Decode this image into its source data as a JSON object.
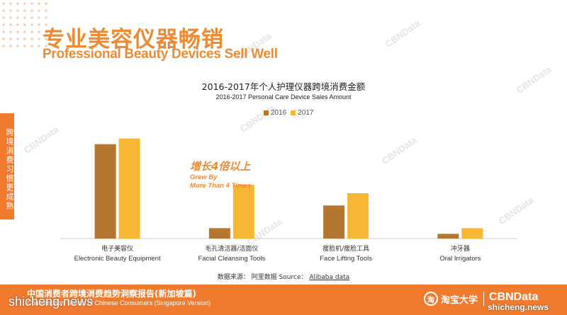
{
  "header": {
    "title_cn": "专业美容仪器畅销",
    "title_en": "Professional Beauty Devices Sell Well"
  },
  "side_tab": {
    "text": "跨境消费习惯更成熟"
  },
  "chart_data": {
    "type": "bar",
    "title": "2016-2017年个人护理仪器跨境消费金额",
    "subtitle": "2016-2017 Personal Care Device Sales Amount",
    "categories": [
      {
        "cn": "电子美容仪",
        "en": "Electronic Beauty Equipment"
      },
      {
        "cn": "毛孔清洁器/洁面仪",
        "en": "Facial Cleansing Tools"
      },
      {
        "cn": "瘦脸机/瘦脸工具",
        "en": "Face Lifting Tools"
      },
      {
        "cn": "冲牙器",
        "en": "Oral Irrigators"
      }
    ],
    "series": [
      {
        "name": "2016",
        "color": "#b5762f",
        "values": [
          100,
          11,
          35,
          5
        ]
      },
      {
        "name": "2017",
        "color": "#f7b634",
        "values": [
          106,
          57,
          48,
          11
        ]
      }
    ],
    "ylim": [
      0,
      120
    ],
    "xlabel": "",
    "ylabel": "",
    "grid": false,
    "legend": "top-center"
  },
  "annotation": {
    "cn": "增长4倍以上",
    "en_line1": "Grew By",
    "en_line2": "More Than 4 Times"
  },
  "source": {
    "prefix": "数据来源：  阿里数据  Source：",
    "link": "Alibaba data"
  },
  "footer": {
    "title_cn": "中国消费者跨境消费趋势洞察报告(新加坡篇)",
    "title_en": "Consumption Trends of Chinese Consumers (Singapore Version)",
    "logo_taobao": "淘宝大学",
    "logo_cbn": "CBNData"
  },
  "watermarks": {
    "left": "shicheng.news",
    "right": "shicheng.news",
    "cbn": "CBNData"
  }
}
